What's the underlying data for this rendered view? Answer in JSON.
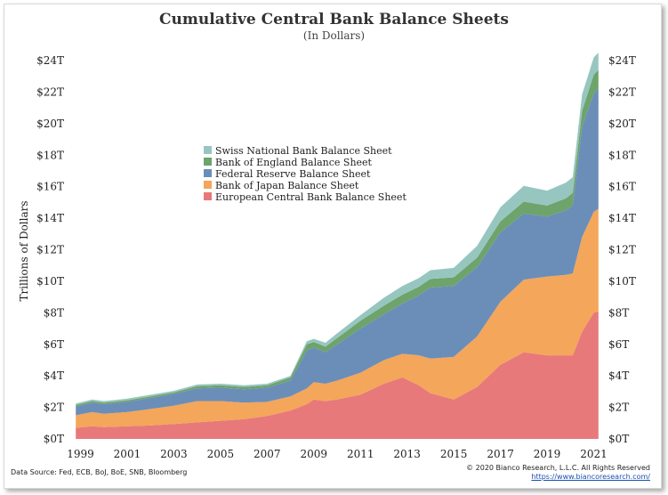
{
  "chart_data": {
    "type": "area",
    "stacked": true,
    "title": "Cumulative Central Bank Balance Sheets",
    "subtitle": "(In Dollars)",
    "ylabel": "Trillions of Dollars",
    "ylim": [
      0,
      24
    ],
    "xlim": [
      1998.6,
      2021.4
    ],
    "grid": false,
    "legend_position": "upper-left",
    "y_ticks": [
      0,
      2,
      4,
      6,
      8,
      10,
      12,
      14,
      16,
      18,
      20,
      22,
      24
    ],
    "y_tick_labels": [
      "$0T",
      "$2T",
      "$4T",
      "$6T",
      "$8T",
      "$10T",
      "$12T",
      "$14T",
      "$16T",
      "$18T",
      "$20T",
      "$22T",
      "$24T"
    ],
    "x_ticks": [
      1999,
      2001,
      2003,
      2005,
      2007,
      2009,
      2011,
      2013,
      2015,
      2017,
      2019,
      2021
    ],
    "x_tick_labels": [
      "1999",
      "2001",
      "2003",
      "2005",
      "2007",
      "2009",
      "2011",
      "2013",
      "2015",
      "2017",
      "2019",
      "2021"
    ],
    "x": [
      1998.8,
      1999.5,
      2000,
      2001,
      2002,
      2003,
      2004,
      2005,
      2006,
      2007,
      2008,
      2008.7,
      2009,
      2009.5,
      2010,
      2011,
      2012,
      2012.8,
      2013.5,
      2014,
      2015,
      2016,
      2017,
      2018,
      2019,
      2019.8,
      2020.1,
      2020.5,
      2021,
      2021.2
    ],
    "series": [
      {
        "name": "European Central Bank Balance Sheet",
        "color": "#e8797a",
        "values": [
          0.7,
          0.8,
          0.75,
          0.8,
          0.85,
          0.95,
          1.05,
          1.15,
          1.25,
          1.45,
          1.8,
          2.2,
          2.5,
          2.4,
          2.5,
          2.8,
          3.5,
          3.9,
          3.4,
          2.9,
          2.5,
          3.3,
          4.7,
          5.5,
          5.3,
          5.3,
          5.3,
          6.8,
          8.0,
          8.1
        ]
      },
      {
        "name": "Bank of Japan Balance Sheet",
        "color": "#f4a65a",
        "values": [
          0.8,
          0.9,
          0.85,
          0.9,
          1.05,
          1.15,
          1.35,
          1.25,
          1.05,
          0.9,
          0.9,
          1.0,
          1.1,
          1.1,
          1.2,
          1.4,
          1.5,
          1.5,
          1.9,
          2.2,
          2.7,
          3.2,
          4.0,
          4.6,
          5.0,
          5.1,
          5.2,
          6.0,
          6.4,
          6.5
        ]
      },
      {
        "name": "Federal Reserve Balance Sheet",
        "color": "#6b8eb9",
        "values": [
          0.55,
          0.6,
          0.6,
          0.65,
          0.7,
          0.75,
          0.8,
          0.85,
          0.85,
          0.9,
          1.0,
          2.4,
          2.2,
          2.0,
          2.3,
          2.8,
          2.9,
          3.2,
          3.8,
          4.5,
          4.5,
          4.4,
          4.4,
          4.2,
          3.8,
          4.1,
          4.3,
          7.0,
          7.5,
          7.6
        ]
      },
      {
        "name": "Bank of England Balance Sheet",
        "color": "#6ea36b",
        "values": [
          0.1,
          0.1,
          0.1,
          0.1,
          0.1,
          0.1,
          0.15,
          0.15,
          0.15,
          0.15,
          0.2,
          0.4,
          0.35,
          0.35,
          0.4,
          0.5,
          0.55,
          0.55,
          0.55,
          0.55,
          0.55,
          0.6,
          0.7,
          0.75,
          0.7,
          0.75,
          0.8,
          1.0,
          1.2,
          1.2
        ]
      },
      {
        "name": "Swiss National Bank Balance Sheet",
        "color": "#97c6c0",
        "values": [
          0.1,
          0.1,
          0.1,
          0.1,
          0.1,
          0.1,
          0.1,
          0.1,
          0.1,
          0.1,
          0.1,
          0.2,
          0.2,
          0.25,
          0.3,
          0.35,
          0.5,
          0.55,
          0.55,
          0.55,
          0.6,
          0.75,
          0.9,
          1.0,
          0.95,
          1.0,
          1.0,
          1.05,
          1.1,
          1.1
        ]
      }
    ],
    "legend_order": [
      "Swiss National Bank Balance Sheet",
      "Bank of England Balance Sheet",
      "Federal Reserve Balance Sheet",
      "Bank of Japan Balance Sheet",
      "European Central Bank Balance Sheet"
    ]
  },
  "footer": {
    "source": "Data Source: Fed, ECB, BoJ, BoE, SNB, Bloomberg",
    "copyright": "© 2020 Bianco Research, L.L.C. All Rights Reserved",
    "url": "https://www.biancoresearch.com/"
  }
}
